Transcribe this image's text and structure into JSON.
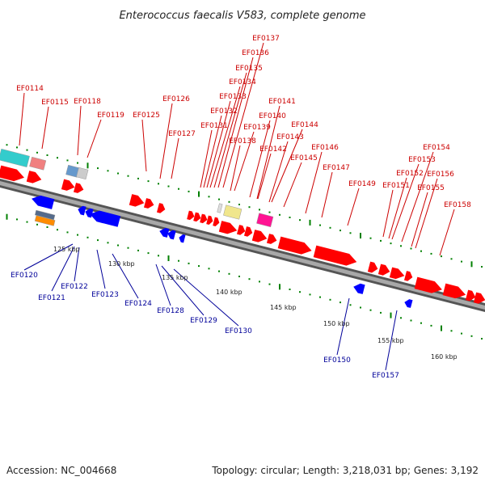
{
  "title": "Enterococcus faecalis V583, complete genome",
  "footer": {
    "accession": "Accession: NC_004668",
    "summary": "Topology: circular; Length: 3,218,031 bp; Genes: 3,192"
  },
  "colors": {
    "forward_gene": "#ff0000",
    "reverse_gene": "#0000ff",
    "forward_label": "#cc0000",
    "reverse_label": "#000099",
    "backbone": "#808080",
    "tick": "#008000"
  },
  "scale_labels": [
    "125 kbp",
    "130 kbp",
    "135 kbp",
    "140 kbp",
    "145 kbp",
    "150 kbp",
    "155 kbp",
    "160 kbp"
  ],
  "forward_genes": [
    "EF0114",
    "EF0115",
    "EF0118",
    "EF0119",
    "EF0125",
    "EF0126",
    "EF0127",
    "EF0131",
    "EF0132",
    "EF0133",
    "EF0134",
    "EF0135",
    "EF0136",
    "EF0137",
    "EF0138",
    "EF0139",
    "EF0140",
    "EF0141",
    "EF0142",
    "EF0143",
    "EF0144",
    "EF0145",
    "EF0146",
    "EF0147",
    "EF0149",
    "EF0151",
    "EF0152",
    "EF0153",
    "EF0154",
    "EF0155",
    "EF0156",
    "EF0158"
  ],
  "reverse_genes": [
    "EF0120",
    "EF0121",
    "EF0122",
    "EF0123",
    "EF0124",
    "EF0128",
    "EF0129",
    "EF0130",
    "EF0150",
    "EF0157"
  ]
}
